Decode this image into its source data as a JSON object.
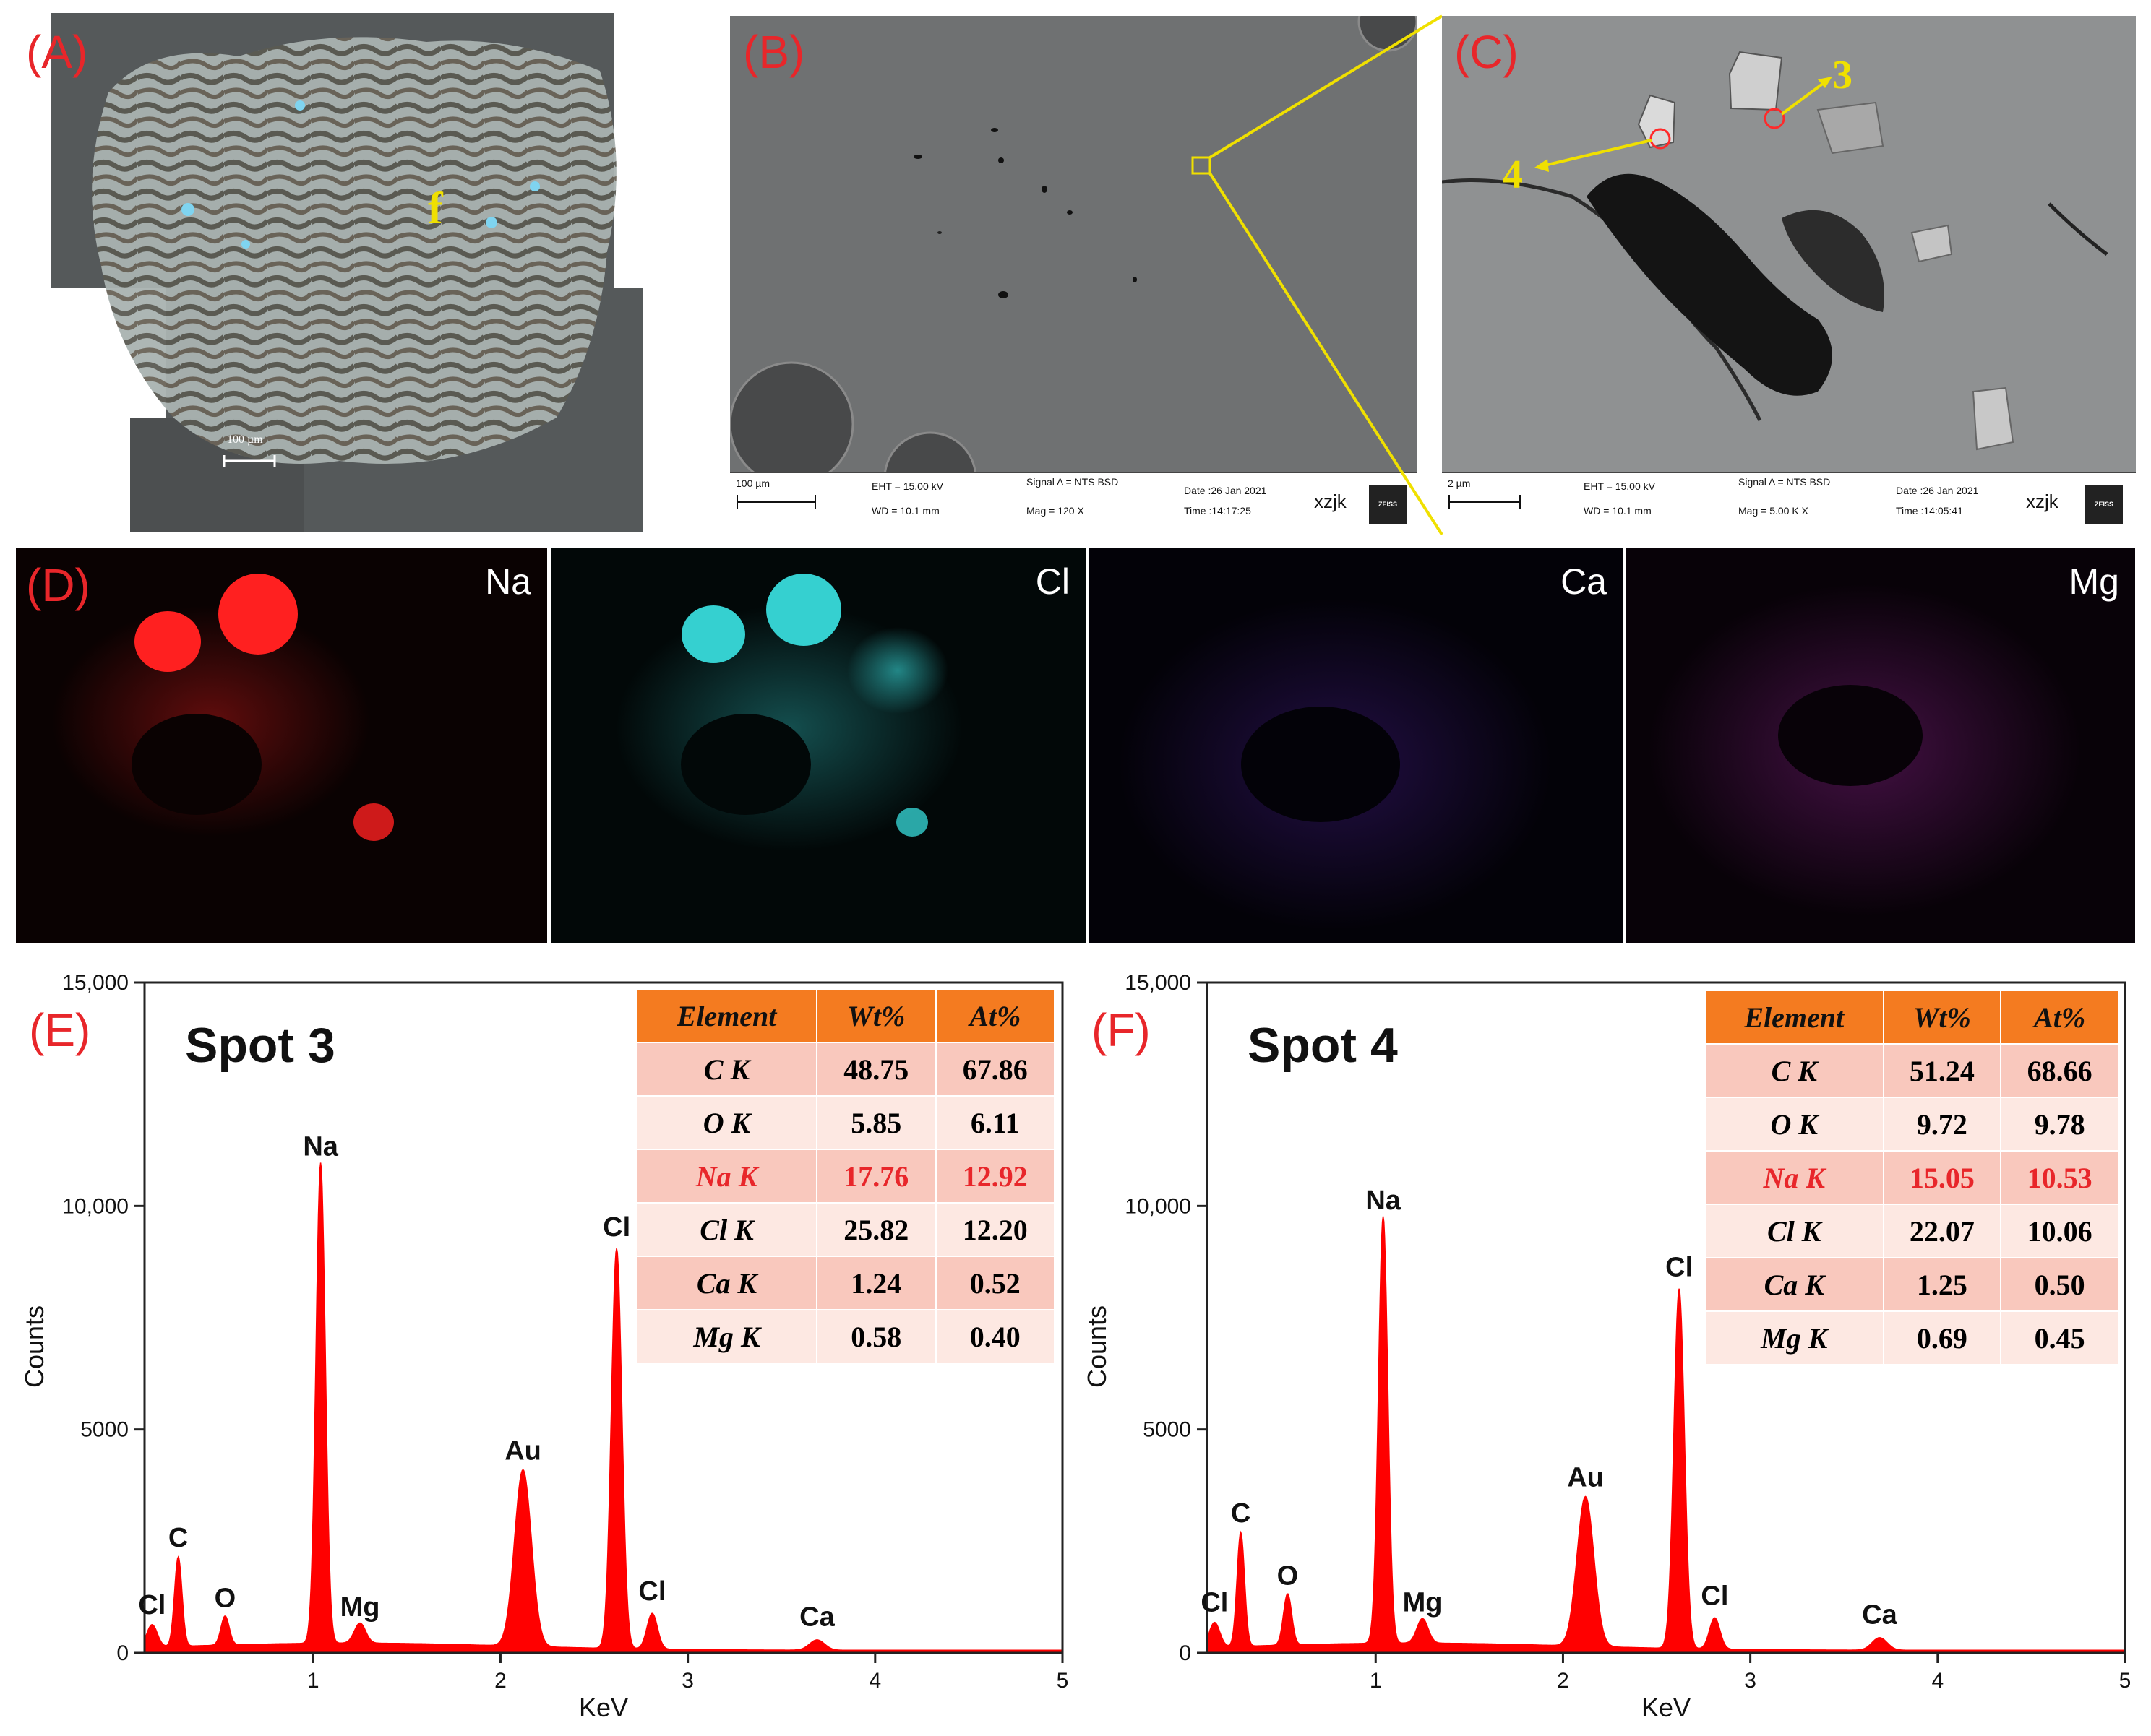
{
  "figure": {
    "panel_labels": [
      "(A)",
      "(B)",
      "(C)",
      "(D)",
      "(E)",
      "(F)"
    ],
    "panel_a": {
      "marker": "f",
      "scale_bar": "100 µm"
    },
    "sem_b": {
      "scale_bar": "100 µm",
      "eht": "EHT = 15.00 kV",
      "wd": "WD = 10.1 mm",
      "signal": "Signal A = NTS BSD",
      "mag": "Mag =   120 X",
      "date": "Date :26 Jan 2021",
      "time": "Time :14:17:25",
      "operator": "xzjk",
      "logo": "ZEISS"
    },
    "sem_c": {
      "scale_bar": "2 µm",
      "eht": "EHT = 15.00 kV",
      "wd": "WD = 10.1 mm",
      "signal": "Signal A = NTS BSD",
      "mag": "Mag =   5.00 K X",
      "date": "Date :26 Jan 2021",
      "time": "Time :14:05:41",
      "operator": "xzjk",
      "logo": "ZEISS",
      "spot_labels": [
        "3",
        "4"
      ]
    },
    "maps": [
      {
        "element": "Na",
        "color": "#ff2020"
      },
      {
        "element": "Cl",
        "color": "#35d0d0"
      },
      {
        "element": "Ca",
        "color": "#6a2bd0"
      },
      {
        "element": "Mg",
        "color": "#b02ab0"
      }
    ],
    "colors": {
      "panel_label": "#e8262a",
      "spectrum": "#ff0000",
      "table_header": "#f47b20",
      "highlight_row": "#e8262a",
      "callout": "#f0e000"
    }
  },
  "chart_data": [
    {
      "type": "area",
      "title": "Spot 3",
      "xlabel": "KeV",
      "ylabel": "Counts",
      "xlim": [
        0.1,
        5
      ],
      "ylim": [
        0,
        15000
      ],
      "x_ticks": [
        "1",
        "2",
        "3",
        "4",
        "5"
      ],
      "y_ticks": [
        "0",
        "5000",
        "10,000",
        "15,000"
      ],
      "peaks": [
        {
          "label": "Cl",
          "x": 0.14,
          "y": 650
        },
        {
          "label": "C",
          "x": 0.28,
          "y": 2150
        },
        {
          "label": "O",
          "x": 0.53,
          "y": 800
        },
        {
          "label": "Na",
          "x": 1.04,
          "y": 10900
        },
        {
          "label": "Mg",
          "x": 1.25,
          "y": 600
        },
        {
          "label": "Au",
          "x": 2.12,
          "y": 4100
        },
        {
          "label": "Cl",
          "x": 2.62,
          "y": 9100
        },
        {
          "label": "Cl",
          "x": 2.81,
          "y": 950
        },
        {
          "label": "Ca",
          "x": 3.69,
          "y": 380
        }
      ],
      "table": {
        "headers": [
          "Element",
          "Wt%",
          "At%"
        ],
        "rows": [
          {
            "element": "C K",
            "wt": "48.75",
            "at": "67.86"
          },
          {
            "element": "O K",
            "wt": "5.85",
            "at": "6.11"
          },
          {
            "element": "Na K",
            "wt": "17.76",
            "at": "12.92"
          },
          {
            "element": "Cl K",
            "wt": "25.82",
            "at": "12.20"
          },
          {
            "element": "Ca K",
            "wt": "1.24",
            "at": "0.52"
          },
          {
            "element": "Mg K",
            "wt": "0.58",
            "at": "0.40"
          }
        ]
      }
    },
    {
      "type": "area",
      "title": "Spot 4",
      "xlabel": "KeV",
      "ylabel": "Counts",
      "xlim": [
        0.1,
        5
      ],
      "ylim": [
        0,
        15000
      ],
      "x_ticks": [
        "1",
        "2",
        "3",
        "4",
        "5"
      ],
      "y_ticks": [
        "0",
        "5000",
        "10,000",
        "15,000"
      ],
      "peaks": [
        {
          "label": "Cl",
          "x": 0.14,
          "y": 700
        },
        {
          "label": "C",
          "x": 0.28,
          "y": 2700
        },
        {
          "label": "O",
          "x": 0.53,
          "y": 1300
        },
        {
          "label": "Na",
          "x": 1.04,
          "y": 9700
        },
        {
          "label": "Mg",
          "x": 1.25,
          "y": 700
        },
        {
          "label": "Au",
          "x": 2.12,
          "y": 3500
        },
        {
          "label": "Cl",
          "x": 2.62,
          "y": 8200
        },
        {
          "label": "Cl",
          "x": 2.81,
          "y": 850
        },
        {
          "label": "Ca",
          "x": 3.69,
          "y": 430
        }
      ],
      "table": {
        "headers": [
          "Element",
          "Wt%",
          "At%"
        ],
        "rows": [
          {
            "element": "C K",
            "wt": "51.24",
            "at": "68.66"
          },
          {
            "element": "O K",
            "wt": "9.72",
            "at": "9.78"
          },
          {
            "element": "Na K",
            "wt": "15.05",
            "at": "10.53"
          },
          {
            "element": "Cl K",
            "wt": "22.07",
            "at": "10.06"
          },
          {
            "element": "Ca K",
            "wt": "1.25",
            "at": "0.50"
          },
          {
            "element": "Mg K",
            "wt": "0.69",
            "at": "0.45"
          }
        ]
      }
    }
  ]
}
